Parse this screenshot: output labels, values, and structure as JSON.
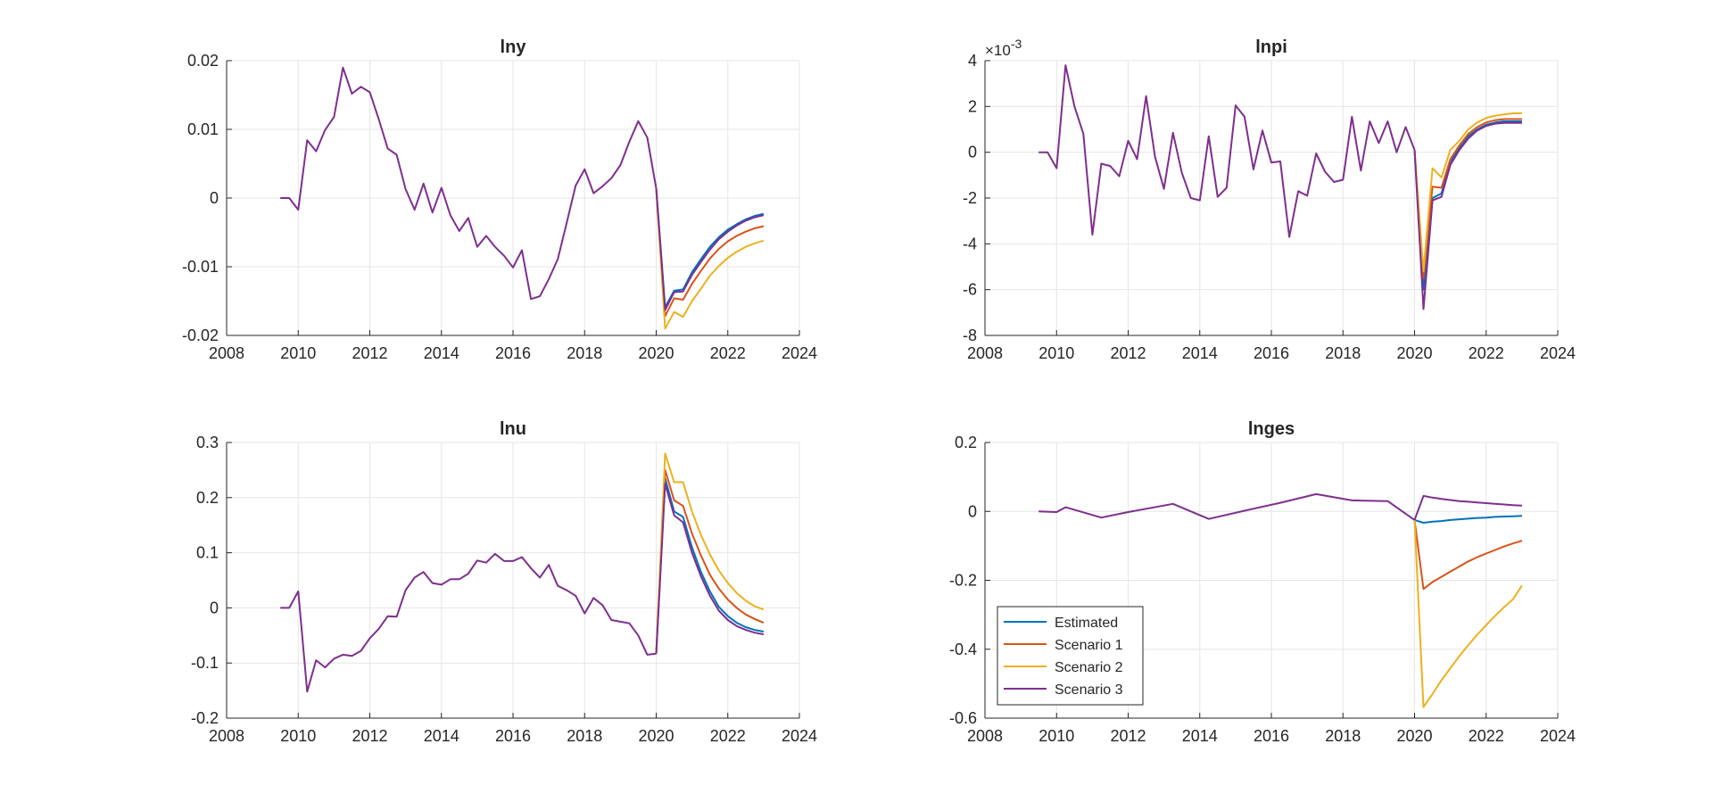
{
  "colors": {
    "Estimated": "#0072BD",
    "Scenario 1": "#D95319",
    "Scenario 2": "#EDB120",
    "Scenario 3": "#7E2F8E",
    "grid": "#e6e6e6",
    "axis": "#262626"
  },
  "chart_data": [
    {
      "type": "line",
      "title": "lny",
      "xlim": [
        2008,
        2024
      ],
      "ylim": [
        -0.02,
        0.02
      ],
      "xticks": [
        2008,
        2010,
        2012,
        2014,
        2016,
        2018,
        2020,
        2022,
        2024
      ],
      "yticks": [
        -0.02,
        -0.01,
        0,
        0.01,
        0.02
      ],
      "ytick_labels": [
        "-0.02",
        "-0.01",
        "0",
        "0.01",
        "0.02"
      ],
      "grid": true,
      "legend": null,
      "history": {
        "x": [
          2009.5,
          2009.75,
          2010,
          2010.25,
          2010.5,
          2010.75,
          2011,
          2011.25,
          2011.5,
          2011.75,
          2012,
          2012.25,
          2012.5,
          2012.75,
          2013,
          2013.25,
          2013.5,
          2013.75,
          2014,
          2014.25,
          2014.5,
          2014.75,
          2015,
          2015.25,
          2015.5,
          2015.75,
          2016,
          2016.25,
          2016.5,
          2016.75,
          2017,
          2017.25,
          2017.5,
          2017.75,
          2018,
          2018.25,
          2018.5,
          2018.75,
          2019,
          2019.25,
          2019.5,
          2019.75,
          2020
        ],
        "y": [
          0,
          0,
          -0.0017,
          0.0084,
          0.0068,
          0.0099,
          0.0118,
          0.019,
          0.0152,
          0.0162,
          0.0154,
          0.0115,
          0.0072,
          0.0063,
          0.0013,
          -0.0017,
          0.0021,
          -0.0021,
          0.0015,
          -0.0025,
          -0.0048,
          -0.0029,
          -0.0071,
          -0.0055,
          -0.0071,
          -0.0084,
          -0.0101,
          -0.0076,
          -0.0147,
          -0.0143,
          -0.0118,
          -0.0089,
          -0.0036,
          0.0018,
          0.0042,
          0.0007,
          0.0017,
          0.0029,
          0.0048,
          0.0082,
          0.0112,
          0.0088,
          0.0014
        ]
      },
      "forecast_x": [
        2020,
        2020.25,
        2020.5,
        2020.75,
        2021,
        2021.25,
        2021.5,
        2021.75,
        2022,
        2022.25,
        2022.5,
        2022.75,
        2023
      ],
      "series": [
        {
          "name": "Estimated",
          "values": [
            0.0014,
            -0.0159,
            -0.0135,
            -0.0133,
            -0.0108,
            -0.0089,
            -0.0071,
            -0.0057,
            -0.0046,
            -0.0038,
            -0.0031,
            -0.0026,
            -0.0023
          ]
        },
        {
          "name": "Scenario 1",
          "values": [
            0.0014,
            -0.0172,
            -0.0146,
            -0.0148,
            -0.0125,
            -0.0106,
            -0.0088,
            -0.0074,
            -0.0063,
            -0.0055,
            -0.0049,
            -0.0044,
            -0.0041
          ]
        },
        {
          "name": "Scenario 2",
          "values": [
            0.0014,
            -0.019,
            -0.0166,
            -0.0173,
            -0.015,
            -0.0132,
            -0.0113,
            -0.0099,
            -0.0087,
            -0.0078,
            -0.0071,
            -0.0066,
            -0.0062
          ]
        },
        {
          "name": "Scenario 3",
          "values": [
            0.0014,
            -0.0163,
            -0.0137,
            -0.0136,
            -0.0112,
            -0.0093,
            -0.0075,
            -0.006,
            -0.0049,
            -0.004,
            -0.0033,
            -0.0028,
            -0.0025
          ]
        }
      ]
    },
    {
      "type": "line",
      "title": "lnpi",
      "xlim": [
        2008,
        2024
      ],
      "ylim": [
        -8,
        4
      ],
      "y_multiplier": "10",
      "y_multiplier_exp": "-3",
      "xticks": [
        2008,
        2010,
        2012,
        2014,
        2016,
        2018,
        2020,
        2022,
        2024
      ],
      "yticks": [
        -8,
        -6,
        -4,
        -2,
        0,
        2,
        4
      ],
      "ytick_labels": [
        "-8",
        "-6",
        "-4",
        "-2",
        "0",
        "2",
        "4"
      ],
      "grid": true,
      "legend": null,
      "history": {
        "x": [
          2009.5,
          2009.75,
          2010,
          2010.25,
          2010.5,
          2010.75,
          2011,
          2011.25,
          2011.5,
          2011.75,
          2012,
          2012.25,
          2012.5,
          2012.75,
          2013,
          2013.25,
          2013.5,
          2013.75,
          2014,
          2014.25,
          2014.5,
          2014.75,
          2015,
          2015.25,
          2015.5,
          2015.75,
          2016,
          2016.25,
          2016.5,
          2016.75,
          2017,
          2017.25,
          2017.5,
          2017.75,
          2018,
          2018.25,
          2018.5,
          2018.75,
          2019,
          2019.25,
          2019.5,
          2019.75,
          2020
        ],
        "y": [
          0,
          0,
          -0.7,
          3.8,
          2,
          0.8,
          -3.6,
          -0.5,
          -0.6,
          -1.05,
          0.5,
          -0.3,
          2.45,
          -0.2,
          -1.6,
          0.85,
          -0.9,
          -2,
          -2.1,
          0.7,
          -1.95,
          -1.55,
          2.05,
          1.55,
          -0.75,
          0.95,
          -0.45,
          -0.4,
          -3.7,
          -1.7,
          -1.9,
          -0.05,
          -0.85,
          -1.3,
          -1.2,
          1.55,
          -0.8,
          1.35,
          0.4,
          1.35,
          0,
          1.1,
          0.1
        ]
      },
      "forecast_x": [
        2020,
        2020.25,
        2020.5,
        2020.75,
        2021,
        2021.25,
        2021.5,
        2021.75,
        2022,
        2022.25,
        2022.5,
        2022.75,
        2023
      ],
      "series": [
        {
          "name": "Estimated",
          "values": [
            0.1,
            -6.0,
            -2.0,
            -1.8,
            -0.4,
            0.2,
            0.7,
            1.0,
            1.2,
            1.3,
            1.35,
            1.35,
            1.35
          ]
        },
        {
          "name": "Scenario 1",
          "values": [
            0.1,
            -5.5,
            -1.5,
            -1.55,
            -0.3,
            0.3,
            0.8,
            1.1,
            1.3,
            1.4,
            1.45,
            1.45,
            1.45
          ]
        },
        {
          "name": "Scenario 2",
          "values": [
            0.1,
            -5.2,
            -0.7,
            -1.1,
            0.1,
            0.5,
            1.0,
            1.3,
            1.5,
            1.6,
            1.65,
            1.7,
            1.7
          ]
        },
        {
          "name": "Scenario 3",
          "values": [
            0.1,
            -6.85,
            -2.1,
            -1.95,
            -0.55,
            0.1,
            0.6,
            0.95,
            1.15,
            1.25,
            1.28,
            1.28,
            1.28
          ]
        }
      ]
    },
    {
      "type": "line",
      "title": "lnu",
      "xlim": [
        2008,
        2024
      ],
      "ylim": [
        -0.2,
        0.3
      ],
      "xticks": [
        2008,
        2010,
        2012,
        2014,
        2016,
        2018,
        2020,
        2022,
        2024
      ],
      "yticks": [
        -0.2,
        -0.1,
        0,
        0.1,
        0.2,
        0.3
      ],
      "ytick_labels": [
        "-0.2",
        "-0.1",
        "0",
        "0.1",
        "0.2",
        "0.3"
      ],
      "grid": true,
      "legend": null,
      "history": {
        "x": [
          2009.5,
          2009.75,
          2010,
          2010.25,
          2010.5,
          2010.75,
          2011,
          2011.25,
          2011.5,
          2011.75,
          2012,
          2012.25,
          2012.5,
          2012.75,
          2013,
          2013.25,
          2013.5,
          2013.75,
          2014,
          2014.25,
          2014.5,
          2014.75,
          2015,
          2015.25,
          2015.5,
          2015.75,
          2016,
          2016.25,
          2016.5,
          2016.75,
          2017,
          2017.25,
          2017.5,
          2017.75,
          2018,
          2018.25,
          2018.5,
          2018.75,
          2019,
          2019.25,
          2019.5,
          2019.75,
          2020
        ],
        "y": [
          0,
          0,
          0.03,
          -0.152,
          -0.095,
          -0.108,
          -0.092,
          -0.085,
          -0.087,
          -0.078,
          -0.055,
          -0.038,
          -0.015,
          -0.016,
          0.032,
          0.055,
          0.065,
          0.045,
          0.042,
          0.052,
          0.052,
          0.062,
          0.086,
          0.082,
          0.098,
          0.085,
          0.085,
          0.092,
          0.072,
          0.055,
          0.078,
          0.04,
          0.032,
          0.022,
          -0.01,
          0.018,
          0.005,
          -0.022,
          -0.025,
          -0.028,
          -0.05,
          -0.085,
          -0.083
        ]
      },
      "forecast_x": [
        2020,
        2020.25,
        2020.5,
        2020.75,
        2021,
        2021.25,
        2021.5,
        2021.75,
        2022,
        2022.25,
        2022.5,
        2022.75,
        2023
      ],
      "series": [
        {
          "name": "Estimated",
          "values": [
            -0.083,
            0.235,
            0.175,
            0.165,
            0.11,
            0.065,
            0.03,
            0.002,
            -0.015,
            -0.027,
            -0.035,
            -0.04,
            -0.043
          ]
        },
        {
          "name": "Scenario 1",
          "values": [
            -0.083,
            0.25,
            0.195,
            0.185,
            0.135,
            0.095,
            0.06,
            0.035,
            0.015,
            0.0,
            -0.012,
            -0.02,
            -0.027
          ]
        },
        {
          "name": "Scenario 2",
          "values": [
            -0.083,
            0.28,
            0.228,
            0.228,
            0.175,
            0.132,
            0.097,
            0.068,
            0.045,
            0.027,
            0.013,
            0.003,
            -0.003
          ]
        },
        {
          "name": "Scenario 3",
          "values": [
            -0.083,
            0.225,
            0.168,
            0.155,
            0.1,
            0.057,
            0.022,
            -0.005,
            -0.022,
            -0.033,
            -0.04,
            -0.045,
            -0.048
          ]
        }
      ]
    },
    {
      "type": "line",
      "title": "lnges",
      "xlim": [
        2008,
        2024
      ],
      "ylim": [
        -0.6,
        0.2
      ],
      "xticks": [
        2008,
        2010,
        2012,
        2014,
        2016,
        2018,
        2020,
        2022,
        2024
      ],
      "yticks": [
        -0.6,
        -0.4,
        -0.2,
        0,
        0.2
      ],
      "ytick_labels": [
        "-0.6",
        "-0.4",
        "-0.2",
        "0",
        "0.2"
      ],
      "grid": true,
      "legend": {
        "placement": "bottom-left",
        "entries": [
          "Estimated",
          "Scenario 1",
          "Scenario 2",
          "Scenario 3"
        ]
      },
      "history": {
        "x": [
          2009.5,
          2010,
          2010.25,
          2011.25,
          2012,
          2013.25,
          2014.25,
          2015.25,
          2016.25,
          2017.25,
          2018.25,
          2019.25,
          2020
        ],
        "y": [
          0,
          -0.002,
          0.012,
          -0.018,
          -0.002,
          0.022,
          -0.022,
          0.002,
          0.025,
          0.05,
          0.032,
          0.03,
          -0.025
        ]
      },
      "forecast_x": [
        2020,
        2020.25,
        2020.5,
        2020.75,
        2021,
        2021.25,
        2021.5,
        2021.75,
        2022,
        2022.25,
        2022.5,
        2022.75,
        2023
      ],
      "series": [
        {
          "name": "Estimated",
          "values": [
            -0.025,
            -0.033,
            -0.03,
            -0.028,
            -0.025,
            -0.023,
            -0.021,
            -0.019,
            -0.018,
            -0.016,
            -0.015,
            -0.014,
            -0.013
          ]
        },
        {
          "name": "Scenario 1",
          "values": [
            -0.025,
            -0.225,
            -0.205,
            -0.19,
            -0.175,
            -0.16,
            -0.145,
            -0.133,
            -0.122,
            -0.112,
            -0.102,
            -0.093,
            -0.085
          ]
        },
        {
          "name": "Scenario 2",
          "values": [
            -0.025,
            -0.568,
            -0.53,
            -0.49,
            -0.455,
            -0.42,
            -0.388,
            -0.358,
            -0.33,
            -0.303,
            -0.278,
            -0.255,
            -0.215
          ]
        },
        {
          "name": "Scenario 3",
          "values": [
            -0.025,
            0.045,
            0.04,
            0.036,
            0.033,
            0.03,
            0.028,
            0.026,
            0.024,
            0.022,
            0.02,
            0.018,
            0.017
          ]
        }
      ]
    }
  ]
}
